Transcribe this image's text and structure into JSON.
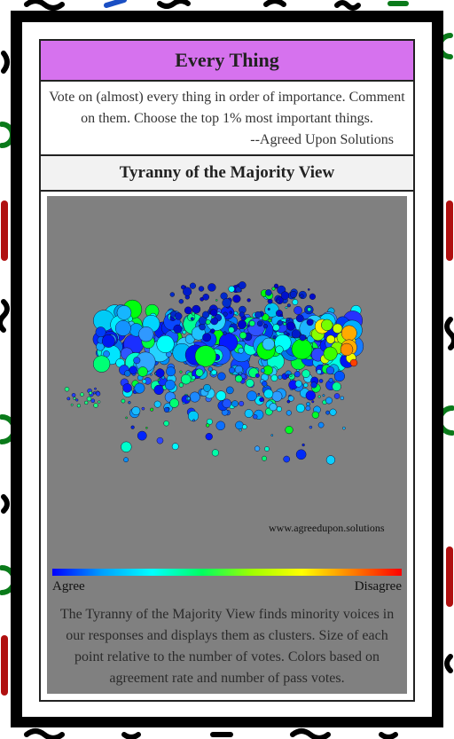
{
  "header": {
    "title": "Every Thing"
  },
  "intro": {
    "text": "Vote on (almost) every thing in order of importance. Comment on them. Choose the top 1% most important things.",
    "attribution": "--Agreed Upon Solutions"
  },
  "section": {
    "title": "Tyranny of the Majority View"
  },
  "visualization": {
    "watermark": "www.agreedupon.solutions"
  },
  "legend": {
    "agree": "Agree",
    "disagree": "Disagree"
  },
  "description": "The Tyranny of the Majority View finds minority voices in our responses and displays them as clusters. Size of each point relative to the number of votes. Colors based on agreement rate and number of pass votes."
}
